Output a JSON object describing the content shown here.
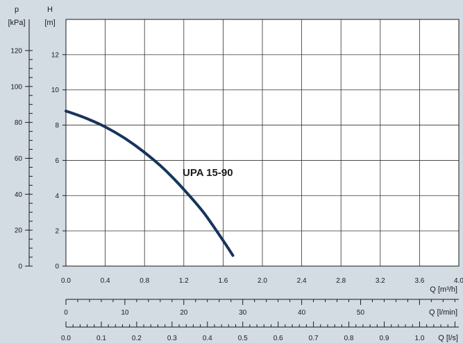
{
  "chart_data": {
    "type": "line",
    "title": "",
    "grid": true,
    "series": [
      {
        "name": "UPA 15-90",
        "color": "#17355c",
        "x": [
          0.0,
          0.2,
          0.4,
          0.6,
          0.8,
          1.0,
          1.2,
          1.4,
          1.6,
          1.7
        ],
        "y": [
          8.8,
          8.4,
          7.9,
          7.25,
          6.45,
          5.5,
          4.35,
          3.05,
          1.45,
          0.6
        ]
      }
    ],
    "axes": {
      "left_p": {
        "title_line1": "p",
        "title_line2": "[kPa]",
        "range": [
          0,
          120
        ],
        "ticks": [
          "0",
          "20",
          "40",
          "60",
          "80",
          "100",
          "120"
        ]
      },
      "left_h": {
        "title_line1": "H",
        "title_line2": "[m]",
        "range": [
          0,
          14
        ],
        "ticks": [
          "0",
          "2",
          "4",
          "6",
          "8",
          "10",
          "12"
        ]
      },
      "bottom_q_m3h": {
        "title": "Q [m³/h]",
        "range": [
          0,
          4.0
        ],
        "ticks": [
          "0.0",
          "0.4",
          "0.8",
          "1.2",
          "1.6",
          "2.0",
          "2.4",
          "2.8",
          "3.2",
          "3.6",
          "4.0"
        ]
      },
      "bottom_q_lmin": {
        "title": "Q [l/min]",
        "range": [
          0,
          66.67
        ],
        "ticks": [
          "0",
          "10",
          "20",
          "30",
          "40",
          "50"
        ]
      },
      "bottom_q_ls": {
        "title": "Q [l/s]",
        "range": [
          0,
          1.111
        ],
        "ticks": [
          "0.0",
          "0.1",
          "0.2",
          "0.3",
          "0.4",
          "0.5",
          "0.6",
          "0.7",
          "0.8",
          "0.9",
          "1.0"
        ]
      }
    }
  }
}
